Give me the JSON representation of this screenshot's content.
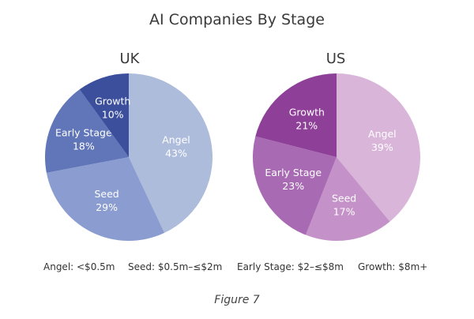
{
  "title": "AI Companies By Stage",
  "caption": "Figure 7",
  "legend": [
    "Angel: <$0.5m",
    "Seed: $0.5m–≤$2m",
    "Early Stage: $2–≤$8m",
    "Growth: $8m+"
  ],
  "chart_data": [
    {
      "type": "pie",
      "title": "UK",
      "slices": [
        {
          "label": "Angel",
          "value": 43,
          "value_label": "43%",
          "color": "#aebcdc"
        },
        {
          "label": "Seed",
          "value": 29,
          "value_label": "29%",
          "color": "#8a9cd0"
        },
        {
          "label": "Early Stage",
          "value": 18,
          "value_label": "18%",
          "color": "#6176b8"
        },
        {
          "label": "Growth",
          "value": 10,
          "value_label": "10%",
          "color": "#3b4f9c"
        }
      ]
    },
    {
      "type": "pie",
      "title": "US",
      "slices": [
        {
          "label": "Angel",
          "value": 39,
          "value_label": "39%",
          "color": "#d9b5d9"
        },
        {
          "label": "Seed",
          "value": 17,
          "value_label": "17%",
          "color": "#c492c8"
        },
        {
          "label": "Early Stage",
          "value": 23,
          "value_label": "23%",
          "color": "#a86bb3"
        },
        {
          "label": "Growth",
          "value": 21,
          "value_label": "21%",
          "color": "#8e3f98"
        }
      ]
    }
  ]
}
